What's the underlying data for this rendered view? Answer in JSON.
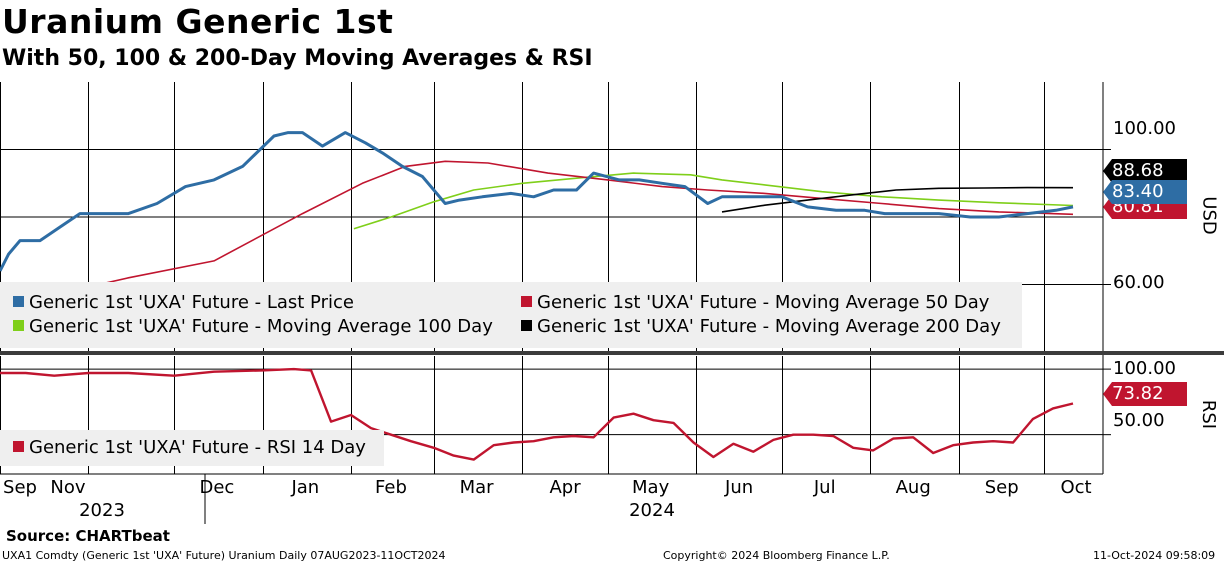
{
  "header": {
    "title": "Uranium Generic 1st",
    "subtitle": "With 50, 100 & 200-Day Moving Averages & RSI"
  },
  "colors": {
    "last_price": "#2e6da4",
    "ma50": "#c0152f",
    "ma100": "#7fcf1a",
    "ma200": "#000000",
    "rsi": "#c0152f",
    "legend_bg": "#efefef"
  },
  "legend": {
    "last_price": "Generic 1st 'UXA' Future - Last Price",
    "ma50": "Generic 1st 'UXA' Future - Moving Average 50 Day",
    "ma100": "Generic 1st 'UXA' Future - Moving Average 100 Day",
    "ma200": "Generic 1st 'UXA' Future - Moving Average 200 Day",
    "rsi": "Generic 1st 'UXA' Future - RSI 14 Day"
  },
  "tags": {
    "ma200": "88.68",
    "last_price": "83.40",
    "ma50": "80.81",
    "rsi": "73.82"
  },
  "axes": {
    "price_unit": "USD",
    "rsi_unit": "RSI",
    "price_ticks": [
      "100.00",
      "60.00"
    ],
    "rsi_ticks": [
      "100.00",
      "50.00"
    ],
    "month_labels": [
      "Sep",
      "Nov",
      "Dec",
      "Jan",
      "Feb",
      "Mar",
      "Apr",
      "May",
      "Jun",
      "Jul",
      "Aug",
      "Sep",
      "Oct"
    ],
    "year_labels": [
      "2023",
      "2024"
    ]
  },
  "footer": {
    "source": "Source: CHARTbeat",
    "left": "UXA1 Comdty (Generic 1st 'UXA' Future) Uranium  Daily 07AUG2023-11OCT2024",
    "center": "Copyright© 2024 Bloomberg Finance L.P.",
    "right": "11-Oct-2024 09:58:09"
  },
  "chart_data": [
    {
      "type": "line",
      "title": "Uranium Generic 1st",
      "ylabel": "USD",
      "ylim": [
        40,
        120
      ],
      "x_axis": "date",
      "x_range": [
        "2023-10-01",
        "2024-10-11"
      ],
      "series": [
        {
          "name": "Generic 1st 'UXA' Future - Last Price",
          "x": [
            "2023-10-01",
            "2023-10-04",
            "2023-10-08",
            "2023-10-15",
            "2023-10-22",
            "2023-10-29",
            "2023-11-05",
            "2023-11-15",
            "2023-11-25",
            "2023-12-05",
            "2023-12-15",
            "2023-12-25",
            "2024-01-05",
            "2024-01-10",
            "2024-01-15",
            "2024-01-22",
            "2024-01-30",
            "2024-02-06",
            "2024-02-12",
            "2024-02-19",
            "2024-02-26",
            "2024-03-05",
            "2024-03-10",
            "2024-03-18",
            "2024-03-28",
            "2024-04-05",
            "2024-04-12",
            "2024-04-20",
            "2024-04-26",
            "2024-05-05",
            "2024-05-12",
            "2024-05-20",
            "2024-05-28",
            "2024-06-05",
            "2024-06-10",
            "2024-06-20",
            "2024-07-01",
            "2024-07-10",
            "2024-07-20",
            "2024-07-30",
            "2024-08-06",
            "2024-08-15",
            "2024-08-25",
            "2024-09-05",
            "2024-09-15",
            "2024-09-25",
            "2024-10-05",
            "2024-10-11"
          ],
          "values": [
            64,
            69,
            73,
            73,
            77,
            81,
            81,
            81,
            84,
            89,
            91,
            95,
            104,
            105,
            105,
            101,
            105,
            102,
            99,
            95,
            92,
            84,
            85,
            86,
            87,
            86,
            88,
            88,
            93,
            91,
            91,
            90,
            89,
            84,
            86,
            86,
            86,
            83,
            82,
            82,
            81,
            81,
            81,
            80,
            80,
            81,
            82,
            83
          ]
        },
        {
          "name": "Generic 1st 'UXA' Future - Moving Average 50 Day",
          "x": [
            "2023-10-20",
            "2023-11-15",
            "2023-12-15",
            "2024-01-15",
            "2024-02-05",
            "2024-02-20",
            "2024-03-05",
            "2024-03-20",
            "2024-04-10",
            "2024-05-01",
            "2024-05-20",
            "2024-06-05",
            "2024-06-25",
            "2024-07-15",
            "2024-08-05",
            "2024-08-25",
            "2024-09-15",
            "2024-10-11"
          ],
          "values": [
            57,
            62,
            67,
            81,
            90,
            95,
            96.5,
            96,
            93,
            91,
            89,
            88,
            87,
            85.5,
            84,
            82.5,
            81.5,
            80.8
          ]
        },
        {
          "name": "Generic 1st 'UXA' Future - Moving Average 100 Day",
          "x": [
            "2024-02-02",
            "2024-02-15",
            "2024-03-01",
            "2024-03-15",
            "2024-04-01",
            "2024-04-20",
            "2024-05-10",
            "2024-05-30",
            "2024-06-10",
            "2024-06-25",
            "2024-07-15",
            "2024-08-05",
            "2024-08-25",
            "2024-09-15",
            "2024-10-11"
          ],
          "values": [
            76.5,
            80,
            84.5,
            88,
            90,
            91.5,
            93,
            92.5,
            91,
            89.5,
            87.5,
            86,
            85,
            84.2,
            83.4
          ]
        },
        {
          "name": "Generic 1st 'UXA' Future - Moving Average 200 Day",
          "x": [
            "2024-06-10",
            "2024-06-25",
            "2024-07-10",
            "2024-07-25",
            "2024-08-10",
            "2024-08-25",
            "2024-09-10",
            "2024-09-25",
            "2024-10-11"
          ],
          "values": [
            81.5,
            83.5,
            85,
            86.5,
            88,
            88.5,
            88.6,
            88.7,
            88.68
          ]
        }
      ]
    },
    {
      "type": "line",
      "title": "RSI",
      "ylabel": "RSI",
      "ylim": [
        20,
        110
      ],
      "x_axis": "date",
      "series": [
        {
          "name": "Generic 1st 'UXA' Future - RSI 14 Day",
          "x": [
            "2023-10-01",
            "2023-10-10",
            "2023-10-20",
            "2023-11-01",
            "2023-11-15",
            "2023-12-01",
            "2023-12-15",
            "2024-01-01",
            "2024-01-12",
            "2024-01-18",
            "2024-01-25",
            "2024-02-01",
            "2024-02-08",
            "2024-02-15",
            "2024-02-22",
            "2024-03-01",
            "2024-03-08",
            "2024-03-15",
            "2024-03-22",
            "2024-03-29",
            "2024-04-05",
            "2024-04-12",
            "2024-04-19",
            "2024-04-26",
            "2024-05-03",
            "2024-05-10",
            "2024-05-17",
            "2024-05-24",
            "2024-05-31",
            "2024-06-07",
            "2024-06-14",
            "2024-06-21",
            "2024-06-28",
            "2024-07-05",
            "2024-07-12",
            "2024-07-19",
            "2024-07-26",
            "2024-08-02",
            "2024-08-09",
            "2024-08-16",
            "2024-08-23",
            "2024-08-30",
            "2024-09-06",
            "2024-09-13",
            "2024-09-20",
            "2024-09-27",
            "2024-10-04",
            "2024-10-11"
          ],
          "values": [
            97,
            97,
            95,
            97,
            97,
            95,
            98,
            99,
            100,
            99,
            60,
            65,
            55,
            50,
            45,
            40,
            34,
            31,
            42,
            44,
            45,
            48,
            49,
            48,
            63,
            66,
            61,
            59,
            44,
            33,
            43,
            37,
            46,
            50,
            50,
            49,
            40,
            38,
            47,
            48,
            36,
            42,
            44,
            45,
            44,
            62,
            70,
            73.8
          ]
        }
      ]
    }
  ]
}
